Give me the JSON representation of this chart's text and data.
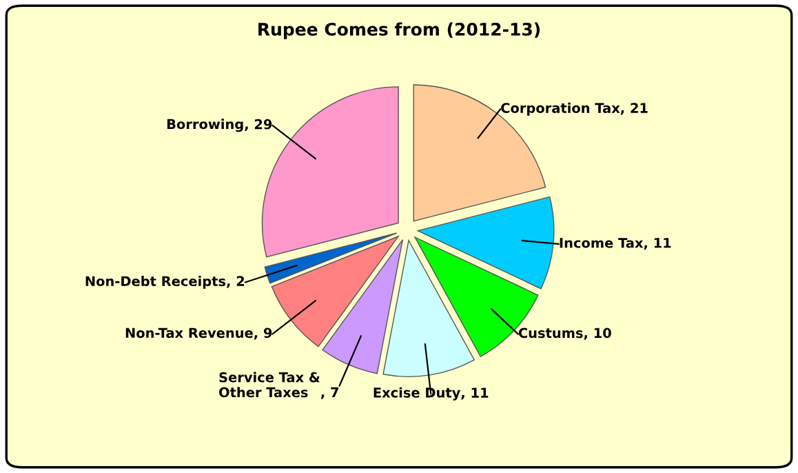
{
  "chart_data": {
    "type": "pie",
    "title": "Rupee Comes from (2012-13)",
    "categories": [
      "Corporation Tax",
      "Income Tax",
      "Custums",
      "Excise Duty",
      "Service Tax &\nOther Taxes",
      "Non-Tax Revenue",
      "Non-Debt Receipts",
      "Borrowing"
    ],
    "values": [
      21,
      11,
      10,
      11,
      7,
      9,
      2,
      29
    ],
    "colors": [
      "#ffcc99",
      "#00ccff",
      "#00ff00",
      "#ccffff",
      "#cc99ff",
      "#ff8080",
      "#0066cc",
      "#ff99cc"
    ],
    "value_labels": [
      ", 21",
      ", 11",
      ", 10",
      ", 11",
      ", 7",
      ", 9",
      ", 2",
      ", 29"
    ],
    "legend": false
  }
}
